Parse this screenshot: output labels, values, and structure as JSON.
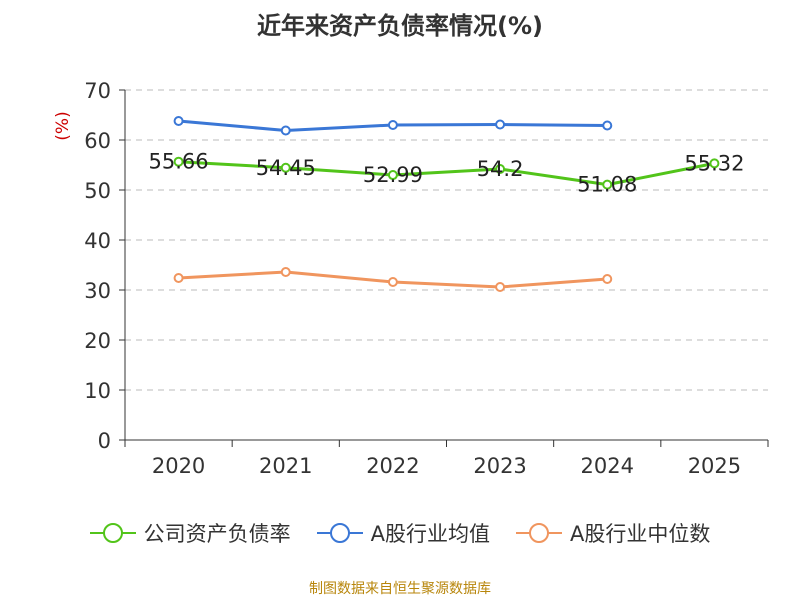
{
  "chart_data": {
    "type": "line",
    "title": "近年来资产负债率情况(%)",
    "ylabel": "(%)",
    "categories": [
      "2020",
      "2021",
      "2022",
      "2023",
      "2024",
      "2025"
    ],
    "ylim": [
      0,
      70
    ],
    "yticks": [
      0,
      10,
      20,
      30,
      40,
      50,
      60,
      70
    ],
    "grid": true,
    "legend_position": "bottom",
    "series": [
      {
        "name": "公司资产负债率",
        "color": "#52c41a",
        "values": [
          55.66,
          54.45,
          52.99,
          54.2,
          51.08,
          55.32
        ],
        "labels": [
          "55.66",
          "54.45",
          "52.99",
          "54.2",
          "51.08",
          "55.32"
        ]
      },
      {
        "name": "A股行业均值",
        "color": "#3a77d6",
        "values": [
          63.8,
          61.9,
          63.0,
          63.1,
          62.9,
          null
        ]
      },
      {
        "name": "A股行业中位数",
        "color": "#f0955e",
        "values": [
          32.4,
          33.6,
          31.6,
          30.6,
          32.2,
          null
        ]
      }
    ]
  },
  "footer": {
    "source": "制图数据来自恒生聚源数据库"
  }
}
